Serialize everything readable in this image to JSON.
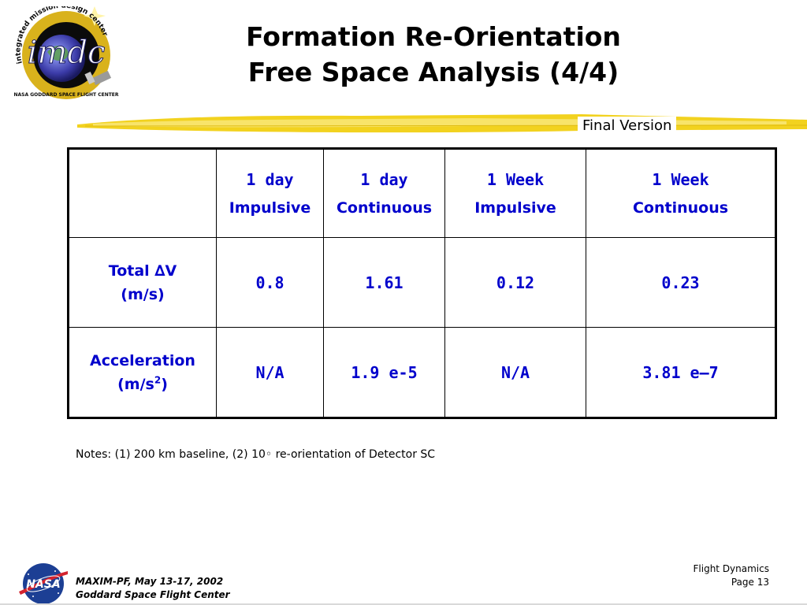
{
  "header": {
    "logo_text": "imdc",
    "logo_ring_text": "integrated mission design center",
    "logo_bottom_text": "NASA GODDARD SPACE FLIGHT CENTER",
    "title_line1": "Formation Re-Orientation",
    "title_line2": "Free Space Analysis (4/4)",
    "badge": "Final Version"
  },
  "table": {
    "columns": [
      {
        "line1": "1 day",
        "line2": "Impulsive"
      },
      {
        "line1": "1 day",
        "line2": "Continuous"
      },
      {
        "line1": "1 Week",
        "line2": "Impulsive"
      },
      {
        "line1": "1 Week",
        "line2": "Continuous"
      }
    ],
    "rows": [
      {
        "label_line1": "Total ∆V",
        "label_line2": "(m/s)",
        "values": [
          "0.8",
          "1.61",
          "0.12",
          "0.23"
        ]
      },
      {
        "label_line1": "Acceleration",
        "label_line2_base": "(m/s",
        "label_line2_sup": "2",
        "label_line2_end": ")",
        "values": [
          "N/A",
          "1.9 e-5",
          "N/A",
          "3.81 e–7"
        ]
      }
    ]
  },
  "notes": "Notes:  (1)  200 km baseline, (2) 10◦ re-orientation of Detector SC",
  "footer": {
    "nasa_logo_text": "NASA",
    "left_line1": "MAXIM-PF, May 13-17, 2002",
    "left_line2": "Goddard Space Flight Center",
    "right_line1": "Flight Dynamics",
    "right_line2": "Page 13"
  },
  "colors": {
    "table_text": "#0000cc",
    "brush": "#f2d21f",
    "logo_gold": "#d9b21c",
    "nasa_blue": "#1c3f94",
    "nasa_red": "#d3232e"
  }
}
